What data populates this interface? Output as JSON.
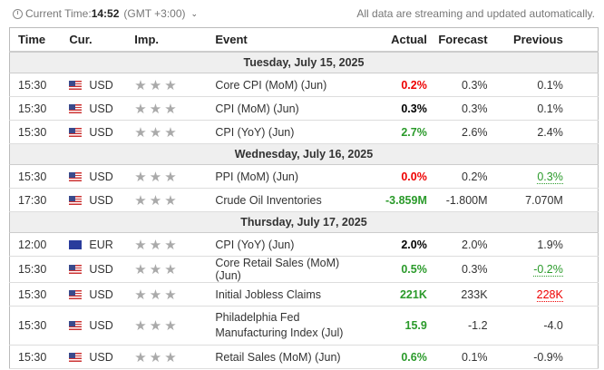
{
  "topbar": {
    "current_time_label": "Current Time:",
    "current_time": "14:52",
    "timezone": "(GMT +3:00)",
    "note": "All data are streaming and updated automatically."
  },
  "headers": {
    "time": "Time",
    "cur": "Cur.",
    "imp": "Imp.",
    "event": "Event",
    "actual": "Actual",
    "forecast": "Forecast",
    "previous": "Previous"
  },
  "groups": [
    {
      "date": "Tuesday, July 15, 2025",
      "rows": [
        {
          "time": "15:30",
          "cur": "USD",
          "event": "Core CPI (MoM) (Jun)",
          "actual": "0.2%",
          "forecast": "0.3%",
          "previous": "0.1%"
        },
        {
          "time": "15:30",
          "cur": "USD",
          "event": "CPI (MoM) (Jun)",
          "actual": "0.3%",
          "forecast": "0.3%",
          "previous": "0.1%"
        },
        {
          "time": "15:30",
          "cur": "USD",
          "event": "CPI (YoY) (Jun)",
          "actual": "2.7%",
          "forecast": "2.6%",
          "previous": "2.4%"
        }
      ]
    },
    {
      "date": "Wednesday, July 16, 2025",
      "rows": [
        {
          "time": "15:30",
          "cur": "USD",
          "event": "PPI (MoM) (Jun)",
          "actual": "0.0%",
          "forecast": "0.2%",
          "previous": "0.3%"
        },
        {
          "time": "17:30",
          "cur": "USD",
          "event": "Crude Oil Inventories",
          "actual": "-3.859M",
          "forecast": "-1.800M",
          "previous": "7.070M"
        }
      ]
    },
    {
      "date": "Thursday, July 17, 2025",
      "rows": [
        {
          "time": "12:00",
          "cur": "EUR",
          "event": "CPI (YoY) (Jun)",
          "actual": "2.0%",
          "forecast": "2.0%",
          "previous": "1.9%"
        },
        {
          "time": "15:30",
          "cur": "USD",
          "event": "Core Retail Sales (MoM) (Jun)",
          "actual": "0.5%",
          "forecast": "0.3%",
          "previous": "-0.2%"
        },
        {
          "time": "15:30",
          "cur": "USD",
          "event": "Initial Jobless Claims",
          "actual": "221K",
          "forecast": "233K",
          "previous": "228K"
        },
        {
          "time": "15:30",
          "cur": "USD",
          "event": "Philadelphia Fed Manufacturing Index (Jul)",
          "actual": "15.9",
          "forecast": "-1.2",
          "previous": "-4.0"
        },
        {
          "time": "15:30",
          "cur": "USD",
          "event": "Retail Sales (MoM) (Jun)",
          "actual": "0.6%",
          "forecast": "0.1%",
          "previous": "-0.9%"
        }
      ]
    }
  ],
  "importance_stars": 3,
  "colors": {
    "better": "#2a9a2a",
    "worse": "#e00000",
    "neutral": "#000000"
  }
}
